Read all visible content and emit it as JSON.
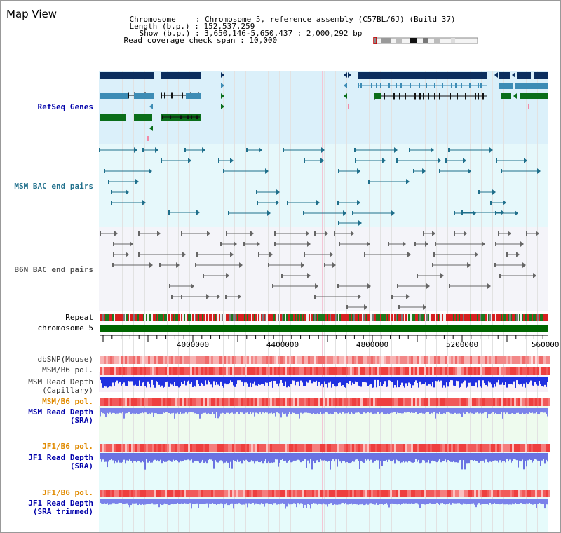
{
  "page": {
    "title": "Map View"
  },
  "header": {
    "chromosome_key": "Chromosome",
    "chromosome_value": "Chromosome 5, reference assembly (C57BL/6J) (Build 37)",
    "length_key": "Length (b.p.)",
    "length_value": "152,537,259",
    "show_key": "Show (b.p.)",
    "show_value": "3,650,146-5,650,437 : 2,000,292 bp",
    "span_key": "Read coverage check span",
    "span_value": "10,000",
    "sep": ":"
  },
  "tracks": {
    "refseq": "RefSeq Genes",
    "msm_bac": "MSM BAC end pairs",
    "b6n_bac": "B6N BAC end pairs",
    "repeat": "Repeat",
    "chromosome": "chromosome 5",
    "dbsnp": "dbSNP(Mouse)",
    "msm_b6_pol": "MSM/B6 pol.",
    "msm_depth_cap_1": "MSM Read Depth",
    "msm_depth_cap_2": "(Capillary)",
    "msm_b6_pol2": "MSM/B6 pol.",
    "msm_depth_sra_1": "MSM Read Depth",
    "msm_depth_sra_2": "(SRA)",
    "jf1_b6_pol": "JF1/B6 pol.",
    "jf1_depth_sra_1": "JF1 Read Depth",
    "jf1_depth_sra_2": "(SRA)",
    "jf1_b6_pol2": "JF1/B6 pol.",
    "jf1_depth_trim_1": "JF1 Read Depth",
    "jf1_depth_trim_2": "(SRA trimmed)"
  },
  "axis": {
    "ticks": [
      "4000000",
      "4400000",
      "4800000",
      "5200000",
      "5600000"
    ]
  },
  "colors": {
    "navy": "#0b2e5e",
    "refseq_label": "#0000aa",
    "msm_label": "#1f6f8b",
    "b6n_label": "#555555",
    "orange_label": "#e08a00",
    "blue_label": "#0000aa",
    "green": "#006600",
    "red": "#ee3333"
  }
}
